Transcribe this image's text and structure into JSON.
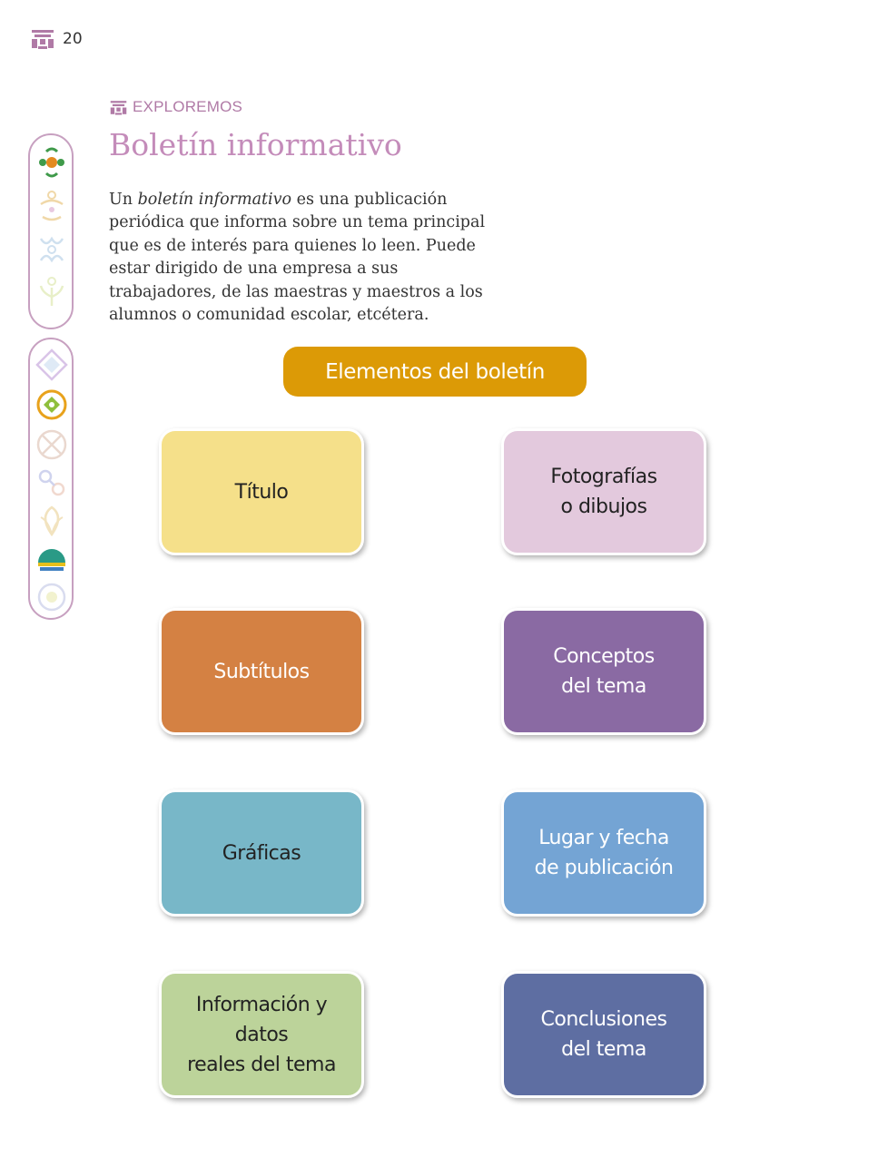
{
  "header": {
    "page_number": "20"
  },
  "section": {
    "label": "EXPLOREMOS"
  },
  "title": "Boletín informativo",
  "intro": {
    "before": "Un ",
    "emphasis": "boletín informativo",
    "after": " es una publicación periódica que informa sobre un tema principal que es de interés para quienes lo leen. Puede estar dirigido de una empresa a sus trabajadores, de las maestras y maestros a los alumnos o comunidad escolar, etcétera."
  },
  "diagram": {
    "heading": "Elementos del boletín",
    "cards": [
      {
        "label": "Título",
        "color": "#f5e08a",
        "text_color": "#222222"
      },
      {
        "label": "Fotografías\no dibujos",
        "color": "#e3c9dd",
        "text_color": "#222222"
      },
      {
        "label": "Subtítulos",
        "color": "#d48143",
        "text_color": "#ffffff"
      },
      {
        "label": "Conceptos\ndel tema",
        "color": "#8a6aa3",
        "text_color": "#ffffff"
      },
      {
        "label": "Gráficas",
        "color": "#78b7c8",
        "text_color": "#222222"
      },
      {
        "label": "Lugar y fecha\nde publicación",
        "color": "#74a4d4",
        "text_color": "#ffffff"
      },
      {
        "label": "Información y datos\nreales del tema",
        "color": "#bcd39a",
        "text_color": "#222222"
      },
      {
        "label": "Conclusiones\ndel tema",
        "color": "#5e6ea2",
        "text_color": "#ffffff"
      }
    ]
  },
  "colors": {
    "title": "#c48cba",
    "banner": "#dc9a06",
    "sidebar_border": "#c7a0c0"
  },
  "sidebar": {
    "top_icons": [
      "flower-icon",
      "figure-icon",
      "dancer-icon",
      "sprout-icon"
    ],
    "bottom_icons": [
      "star-compass-icon",
      "spiral-icon",
      "knot-icon",
      "chain-icon",
      "leaf-icon",
      "fan-icon",
      "sun-icon"
    ]
  }
}
